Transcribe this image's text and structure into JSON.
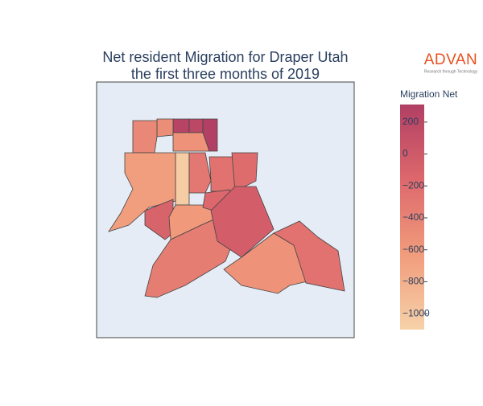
{
  "chart_data": {
    "type": "choropleth",
    "title": [
      "Net resident Migration for Draper Utah",
      "the first three months of 2019"
    ],
    "colorbar_title": "Migration Net",
    "zlim": [
      -1100,
      310
    ],
    "colorbar_ticks": [
      200,
      0,
      {
        "value": -200,
        "label": "−200"
      },
      {
        "value": -400,
        "label": "−400"
      },
      {
        "value": -600,
        "label": "−600"
      },
      {
        "value": -800,
        "label": "−800"
      },
      {
        "value": -1000,
        "label": "−1000"
      }
    ],
    "colorscale": [
      "#f6d2a9",
      "#f19c7c",
      "#dd686c",
      "#b13f64"
    ],
    "values": [
      250,
      200,
      300,
      -500,
      -450,
      -550,
      -1050,
      -300,
      -250,
      -200,
      -650,
      -100,
      -600,
      -150,
      -350,
      -50,
      -550,
      -250
    ],
    "logo": {
      "name": "ADVAN",
      "tagline": "Research through Technology",
      "color": "#e8501e"
    }
  }
}
